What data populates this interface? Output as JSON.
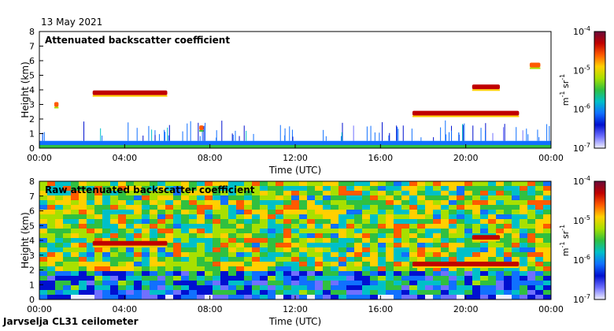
{
  "header": {
    "date": "13 May 2021"
  },
  "footer": {
    "station": "Jarvselja CL31 ceilometer"
  },
  "colorbar": {
    "top": "10",
    "top_exp": "-4",
    "ticks": [
      {
        "base": "10",
        "exp": "-4"
      },
      {
        "base": "10",
        "exp": "-5"
      },
      {
        "base": "10",
        "exp": "-6"
      },
      {
        "base": "10",
        "exp": "-7"
      }
    ],
    "unit_m": "m",
    "unit_m_exp": "-1",
    "unit_sr": "sr",
    "unit_sr_exp": "-1",
    "colors": [
      "#6a0a3a",
      "#c00000",
      "#ff5a00",
      "#ffd000",
      "#a8e000",
      "#30c040",
      "#00c0c8",
      "#1070ff",
      "#0010d0",
      "#7070ff",
      "#f0f0ff"
    ]
  },
  "chart_data": [
    {
      "type": "heatmap",
      "title": "Attenuated backscatter coefficient",
      "xlabel": "Time (UTC)",
      "ylabel": "Height (km)",
      "xticks": [
        "00:00",
        "04:00",
        "08:00",
        "12:00",
        "16:00",
        "20:00",
        "00:00"
      ],
      "yticks": [
        "0",
        "1",
        "2",
        "3",
        "4",
        "5",
        "6",
        "7",
        "8"
      ],
      "xlim_hours": [
        0,
        24
      ],
      "ylim_km": [
        0,
        8
      ],
      "color_scale": "log",
      "zlim": [
        1e-07,
        0.0001
      ],
      "zunit": "m-1 sr-1",
      "features": [
        {
          "name": "boundary layer",
          "from_h": 0,
          "to_h": 24,
          "top_km": 0.5,
          "level": 1e-06
        },
        {
          "name": "aerosol layer",
          "from_h": 2.5,
          "to_h": 6.0,
          "height_km": 3.8,
          "level": 5e-05
        },
        {
          "name": "cloud patch",
          "from_h": 0.7,
          "to_h": 0.9,
          "height_km": 3.0,
          "level": 3e-05
        },
        {
          "name": "cloud patch",
          "from_h": 7.5,
          "to_h": 7.7,
          "height_km": 1.4,
          "level": 2e-05
        },
        {
          "name": "cloud layer",
          "from_h": 17.5,
          "to_h": 22.5,
          "height_km": 2.4,
          "level": 5e-05
        },
        {
          "name": "cloud layer",
          "from_h": 20.3,
          "to_h": 21.6,
          "height_km": 4.2,
          "level": 5e-05
        },
        {
          "name": "cloud patch",
          "from_h": 23.0,
          "to_h": 23.5,
          "height_km": 5.7,
          "level": 3e-05
        }
      ]
    },
    {
      "type": "heatmap",
      "title": "Raw attenuated backscatter coefficient",
      "xlabel": "Time (UTC)",
      "ylabel": "Height (km)",
      "xticks": [
        "00:00",
        "04:00",
        "08:00",
        "12:00",
        "16:00",
        "20:00",
        "00:00"
      ],
      "yticks": [
        "0",
        "1",
        "2",
        "3",
        "4",
        "5",
        "6",
        "7",
        "8"
      ],
      "xlim_hours": [
        0,
        24
      ],
      "ylim_km": [
        0,
        8
      ],
      "color_scale": "log",
      "zlim": [
        1e-07,
        0.0001
      ],
      "zunit": "m-1 sr-1",
      "features": [
        {
          "name": "noise background",
          "from_h": 0,
          "to_h": 24,
          "height_km": 4,
          "level": 5e-06
        },
        {
          "name": "aerosol layer",
          "from_h": 2.5,
          "to_h": 6.0,
          "height_km": 3.8,
          "level": 5e-05
        },
        {
          "name": "cloud layer",
          "from_h": 17.5,
          "to_h": 22.5,
          "height_km": 2.4,
          "level": 5e-05
        },
        {
          "name": "cloud layer",
          "from_h": 20.3,
          "to_h": 21.6,
          "height_km": 4.2,
          "level": 5e-05
        }
      ]
    }
  ]
}
